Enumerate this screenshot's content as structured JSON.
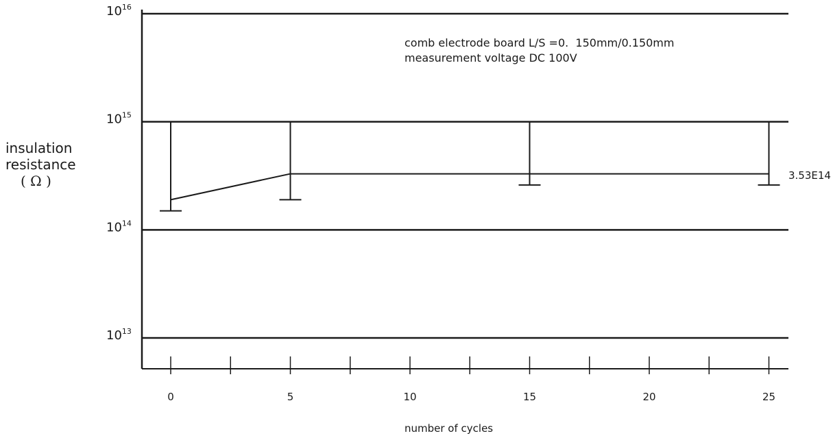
{
  "chart_data": {
    "type": "line",
    "title": "",
    "annotation_lines": [
      "comb electrode board L/S =0.  150mm/0.150mm",
      "measurement voltage DC 100V"
    ],
    "xlabel": "number of cycles",
    "ylabel": [
      "insulation",
      "resistance",
      "( Ω )"
    ],
    "y_scale": "log",
    "ylim": [
      10000000000000.0,
      1e+16
    ],
    "y_ticks": [
      {
        "value": 1e+16,
        "base": "10",
        "exp": "16"
      },
      {
        "value": 1000000000000000.0,
        "base": "10",
        "exp": "15"
      },
      {
        "value": 100000000000000.0,
        "base": "10",
        "exp": "14"
      },
      {
        "value": 10000000000000.0,
        "base": "10",
        "exp": "13"
      }
    ],
    "xlim": [
      -1,
      26.5
    ],
    "x_ticks": [
      0,
      5,
      10,
      15,
      20,
      25
    ],
    "x_minor_ticks": [
      2.5,
      7.5,
      12.5,
      17.5,
      22.5
    ],
    "grid": "horizontal",
    "series": [
      {
        "points": [
          {
            "x": 0,
            "y": 190000000000000.0,
            "max": 1000000000000000.0,
            "min": 150000000000000.0
          },
          {
            "x": 5,
            "y": 330000000000000.0,
            "max": 1000000000000000.0,
            "min": 190000000000000.0
          },
          {
            "x": 15,
            "y": 330000000000000.0,
            "max": 1000000000000000.0,
            "min": 260000000000000.0
          },
          {
            "x": 25,
            "y": 330000000000000.0,
            "max": 1000000000000000.0,
            "min": 260000000000000.0
          }
        ]
      }
    ],
    "value_label": "3.53E14"
  }
}
